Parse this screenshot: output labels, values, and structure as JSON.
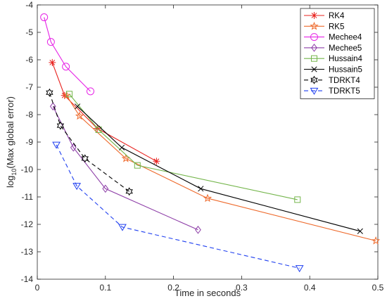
{
  "chart_data": {
    "type": "line",
    "title": "",
    "xlabel": "Time in seconds",
    "ylabel_prefix": "log",
    "ylabel_sub": "10",
    "ylabel_suffix": "(Max global error)",
    "xlim": [
      0,
      0.5
    ],
    "ylim": [
      -14,
      -4
    ],
    "xticks": [
      0,
      0.1,
      0.2,
      0.3,
      0.4,
      0.5
    ],
    "xtick_labels": [
      "0",
      "0.1",
      "0.2",
      "0.3",
      "0.4",
      "0.5"
    ],
    "yticks": [
      -14,
      -13,
      -12,
      -11,
      -10,
      -9,
      -8,
      -7,
      -6,
      -5,
      -4
    ],
    "ytick_labels": [
      "-14",
      "-13",
      "-12",
      "-11",
      "-10",
      "-9",
      "-8",
      "-7",
      "-6",
      "-5",
      "-4"
    ],
    "grid": false,
    "legend_position": "top-right",
    "series": [
      {
        "name": "RK4",
        "color": "#e8211d",
        "marker": "asterisk",
        "dash": "solid",
        "x": [
          0.022,
          0.04,
          0.088,
          0.175
        ],
        "y": [
          -6.1,
          -7.3,
          -8.5,
          -9.7
        ]
      },
      {
        "name": "RK5",
        "color": "#ee6a2c",
        "marker": "star",
        "dash": "solid",
        "x": [
          0.043,
          0.062,
          0.13,
          0.25,
          0.497
        ],
        "y": [
          -7.3,
          -8.05,
          -9.6,
          -11.05,
          -12.6
        ]
      },
      {
        "name": "Mechee4",
        "color": "#e623e6",
        "marker": "circle",
        "dash": "solid",
        "x": [
          0.01,
          0.02,
          0.042,
          0.078
        ],
        "y": [
          -4.45,
          -5.35,
          -6.25,
          -7.15
        ]
      },
      {
        "name": "Mechee5",
        "color": "#8e3fa8",
        "marker": "diamond",
        "dash": "solid",
        "x": [
          0.023,
          0.053,
          0.1,
          0.236
        ],
        "y": [
          -7.7,
          -9.2,
          -10.7,
          -12.2
        ]
      },
      {
        "name": "Hussain4",
        "color": "#74b54b",
        "marker": "square",
        "dash": "solid",
        "x": [
          0.047,
          0.09,
          0.147,
          0.382
        ],
        "y": [
          -7.25,
          -8.55,
          -9.85,
          -11.1
        ]
      },
      {
        "name": "Hussain5",
        "color": "#000000",
        "marker": "cross",
        "dash": "solid",
        "x": [
          0.059,
          0.124,
          0.24,
          0.474
        ],
        "y": [
          -7.7,
          -9.2,
          -10.7,
          -12.25
        ]
      },
      {
        "name": "TDRKT4",
        "color": "#000000",
        "marker": "hexagram",
        "dash": "dashed",
        "x": [
          0.018,
          0.034,
          0.07,
          0.135
        ],
        "y": [
          -7.2,
          -8.4,
          -9.6,
          -10.8
        ]
      },
      {
        "name": "TDRKT5",
        "color": "#1f3ff0",
        "marker": "triangle-down",
        "dash": "dashed",
        "x": [
          0.028,
          0.058,
          0.125,
          0.385
        ],
        "y": [
          -9.1,
          -10.6,
          -12.1,
          -13.6
        ]
      }
    ]
  }
}
